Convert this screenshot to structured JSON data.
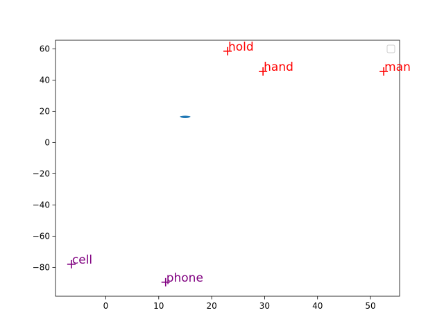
{
  "chart_data": {
    "type": "scatter",
    "title": "",
    "xlabel": "",
    "ylabel": "",
    "xlim": [
      -9.5,
      55.5
    ],
    "ylim": [
      -98.5,
      65.5
    ],
    "x_ticks": [
      0,
      10,
      20,
      30,
      40,
      50
    ],
    "y_ticks": [
      -80,
      -60,
      -40,
      -20,
      0,
      20,
      40,
      60
    ],
    "x_tick_labels": [
      "0",
      "10",
      "20",
      "30",
      "40",
      "50"
    ],
    "y_tick_labels": [
      "−80",
      "−60",
      "−40",
      "−20",
      "0",
      "20",
      "40",
      "60"
    ],
    "grid": false,
    "legend": {
      "placement": "top-right",
      "entries": []
    },
    "points": [
      {
        "label": "hold",
        "x": 23.0,
        "y": 58.5,
        "color": "#ff0000",
        "marker": "plus"
      },
      {
        "label": "hand",
        "x": 29.7,
        "y": 45.5,
        "color": "#ff0000",
        "marker": "plus"
      },
      {
        "label": "man",
        "x": 52.5,
        "y": 45.5,
        "color": "#ff0000",
        "marker": "plus"
      },
      {
        "label": "cell",
        "x": -6.5,
        "y": -78.0,
        "color": "#800080",
        "marker": "plus"
      },
      {
        "label": "phone",
        "x": 11.3,
        "y": -89.5,
        "color": "#800080",
        "marker": "plus"
      }
    ],
    "ellipse": {
      "x": 15.0,
      "y": 16.5,
      "rx": 1.0,
      "ry": 1.0,
      "color": "#1f77b4"
    }
  }
}
